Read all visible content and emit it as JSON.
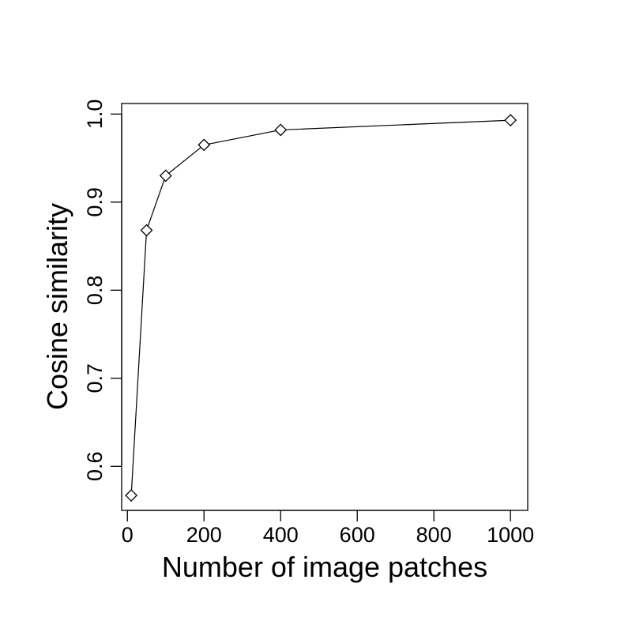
{
  "chart_data": {
    "type": "line",
    "title": "",
    "xlabel": "Number of image patches",
    "ylabel": "Cosine similarity",
    "xlim": [
      -15,
      1045
    ],
    "ylim": [
      0.55,
      1.012
    ],
    "x_ticks": [
      0,
      200,
      400,
      600,
      800,
      1000
    ],
    "y_ticks": [
      0.6,
      0.7,
      0.8,
      0.9,
      1.0
    ],
    "x_tick_labels": [
      "0",
      "200",
      "400",
      "600",
      "800",
      "1000"
    ],
    "y_tick_labels": [
      "0.6",
      "0.7",
      "0.8",
      "0.9",
      "1.0"
    ],
    "grid": false,
    "legend": "none",
    "marker": "diamond-open",
    "line_color": "#000000",
    "series": [
      {
        "x": [
          10,
          50,
          100,
          200,
          400,
          1000
        ],
        "y": [
          0.567,
          0.868,
          0.93,
          0.965,
          0.982,
          0.993
        ]
      }
    ]
  }
}
